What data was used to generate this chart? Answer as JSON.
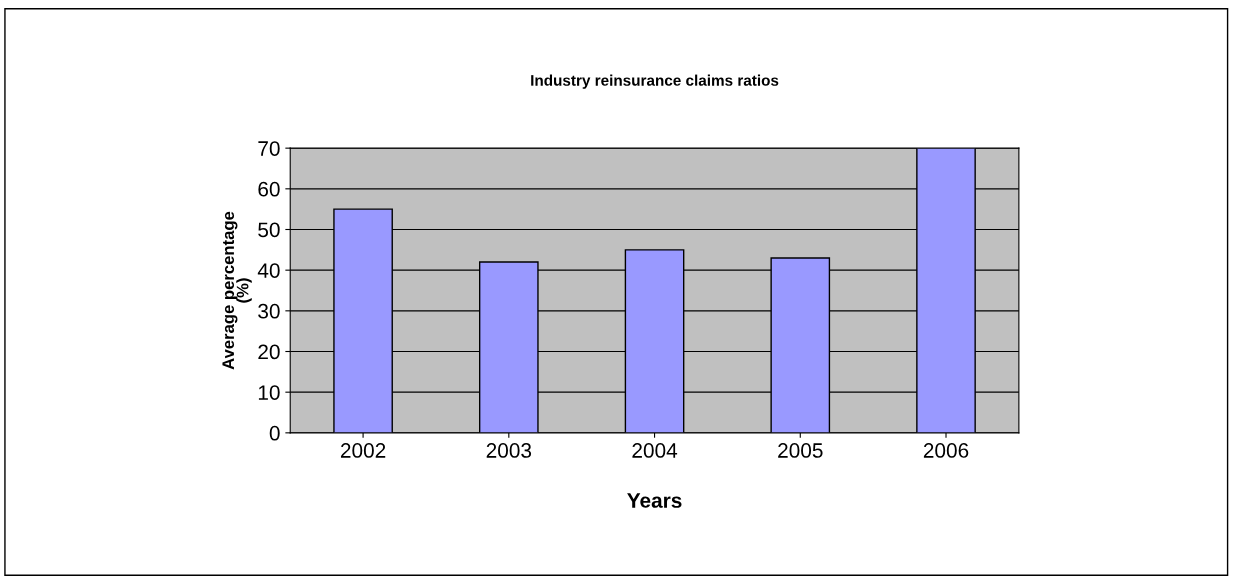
{
  "chart_data": {
    "type": "bar",
    "title": "Industry reinsurance claims ratios",
    "xlabel": "Years",
    "ylabel": "Average percentage\n(%)",
    "categories": [
      "2002",
      "2003",
      "2004",
      "2005",
      "2006"
    ],
    "values": [
      55,
      42,
      45,
      43,
      70
    ],
    "color": "#9999ff",
    "ylim": [
      0,
      70
    ],
    "yticks": [
      0,
      10,
      20,
      30,
      40,
      50,
      60,
      70
    ],
    "grid": "y",
    "legend": false
  }
}
